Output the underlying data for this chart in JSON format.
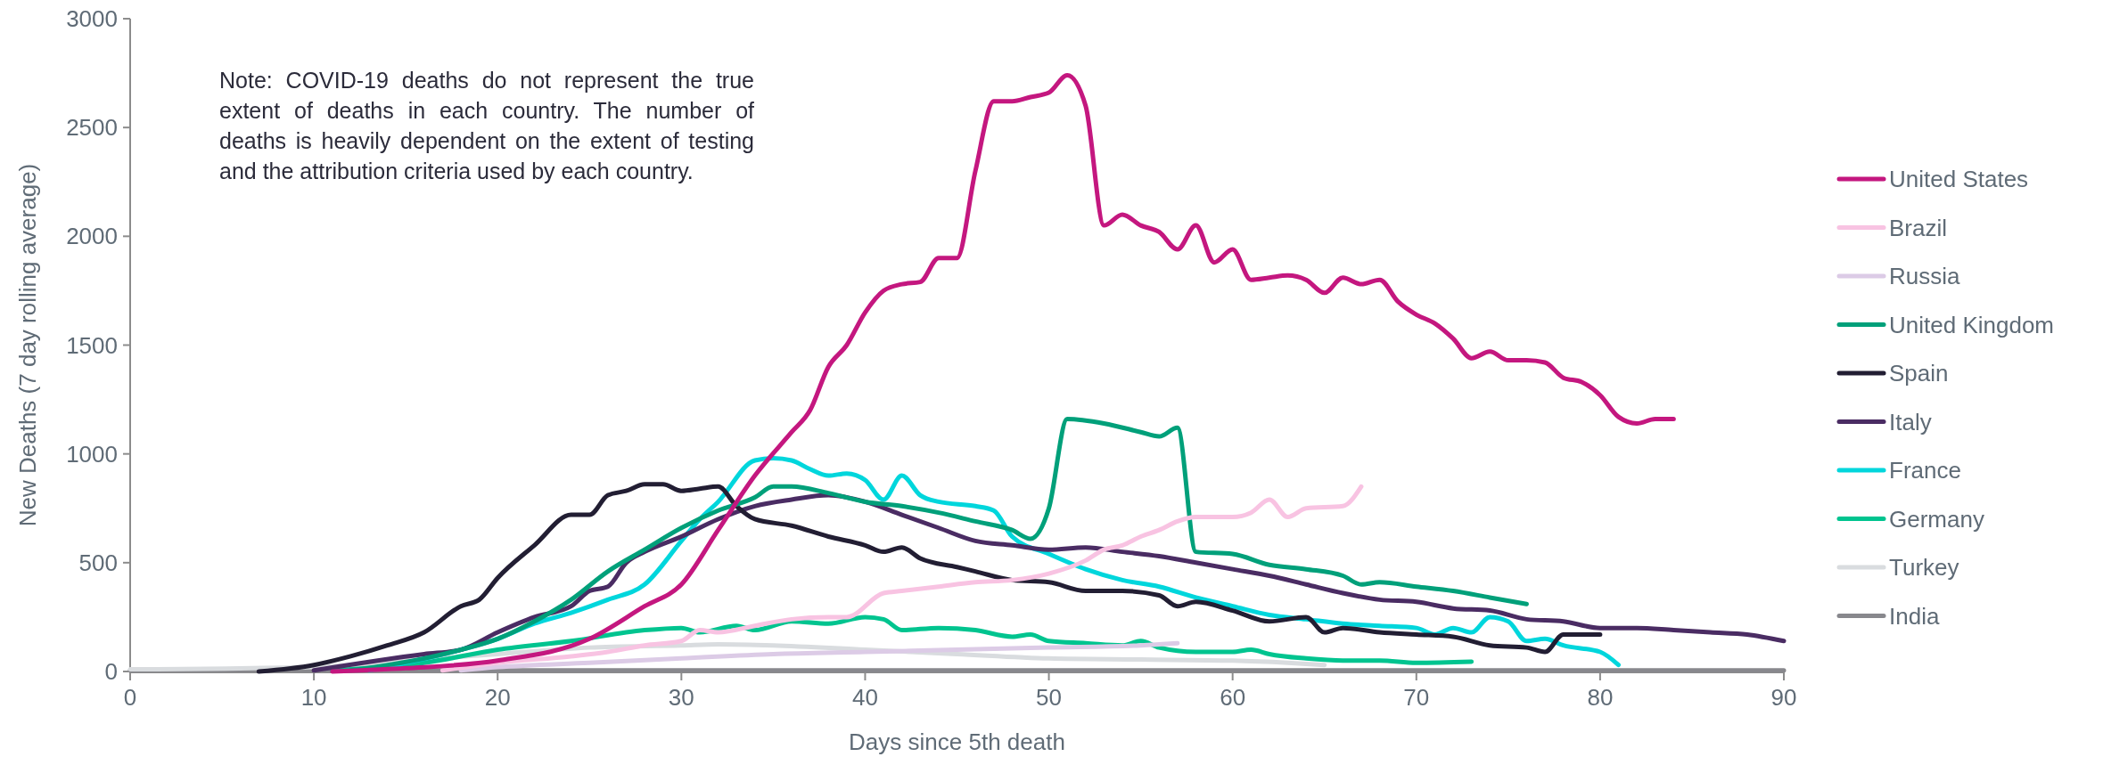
{
  "chart_data": {
    "type": "line",
    "xlabel": "Days since 5th death",
    "ylabel": "New Deaths (7 day rolling average)",
    "xlim": [
      0,
      90
    ],
    "xticks": [
      0,
      10,
      20,
      30,
      40,
      50,
      60,
      70,
      80,
      90
    ],
    "ylim": [
      0,
      3000
    ],
    "yticks": [
      0,
      500,
      1000,
      1500,
      2000,
      2500,
      3000
    ],
    "grid": false,
    "legend": "right",
    "line_style": "solid",
    "marker": "none",
    "annotations": [
      "Note: COVID-19 deaths do not represent the true extent of deaths in each country. The number of deaths is heavily dependent on the extent of testing and the attribution criteria used by each country."
    ],
    "series": [
      {
        "name": "United States",
        "color": "#c4177f",
        "x": [
          11,
          15,
          20,
          25,
          28,
          30,
          32,
          34,
          36,
          37,
          38,
          39,
          40,
          41,
          42,
          43,
          44,
          45,
          46,
          47,
          48,
          49,
          50,
          51,
          52,
          53,
          54,
          55,
          56,
          57,
          58,
          59,
          60,
          61,
          62,
          63,
          64,
          65,
          66,
          67,
          68,
          69,
          70,
          71,
          72,
          73,
          74,
          75,
          76,
          77,
          78,
          79,
          80,
          81,
          82,
          83,
          84
        ],
        "values": [
          0,
          15,
          50,
          150,
          300,
          400,
          650,
          900,
          1100,
          1200,
          1400,
          1500,
          1650,
          1750,
          1780,
          1790,
          1900,
          1900,
          2300,
          2620,
          2620,
          2640,
          2660,
          2740,
          2600,
          2050,
          2100,
          2050,
          2020,
          1940,
          2050,
          1880,
          1940,
          1800,
          1810,
          1820,
          1800,
          1740,
          1810,
          1780,
          1800,
          1700,
          1640,
          1600,
          1530,
          1440,
          1470,
          1430,
          1430,
          1420,
          1350,
          1330,
          1270,
          1170,
          1140,
          1160,
          1160
        ]
      },
      {
        "name": "Brazil",
        "color": "#f8c3e2",
        "x": [
          17,
          20,
          24,
          26,
          28,
          30,
          31,
          32,
          34,
          36,
          38,
          39,
          41,
          42,
          44,
          46,
          48,
          50,
          52,
          53,
          54,
          55,
          56,
          57,
          58,
          60,
          61,
          62,
          63,
          64,
          66,
          67
        ],
        "values": [
          5,
          40,
          70,
          90,
          120,
          140,
          190,
          180,
          210,
          240,
          250,
          250,
          360,
          370,
          390,
          410,
          420,
          450,
          510,
          560,
          580,
          620,
          650,
          690,
          710,
          710,
          730,
          790,
          710,
          750,
          760,
          850
        ]
      },
      {
        "name": "Russia",
        "color": "#dccbe6",
        "x": [
          18,
          20,
          25,
          30,
          35,
          40,
          45,
          50,
          55,
          57
        ],
        "values": [
          5,
          20,
          40,
          60,
          80,
          90,
          100,
          110,
          120,
          130
        ]
      },
      {
        "name": "United Kingdom",
        "color": "#00a07a",
        "x": [
          12,
          16,
          18,
          20,
          22,
          24,
          26,
          28,
          30,
          32,
          34,
          35,
          36,
          38,
          40,
          42,
          44,
          46,
          48,
          49,
          50,
          51,
          53,
          55,
          56,
          57,
          58,
          60,
          62,
          64,
          66,
          67,
          68,
          70,
          72,
          74,
          76
        ],
        "values": [
          5,
          60,
          100,
          150,
          230,
          330,
          460,
          560,
          660,
          740,
          800,
          850,
          850,
          820,
          780,
          760,
          730,
          690,
          650,
          610,
          750,
          1160,
          1140,
          1100,
          1080,
          1120,
          550,
          540,
          490,
          470,
          440,
          400,
          410,
          390,
          370,
          340,
          310
        ]
      },
      {
        "name": "Spain",
        "color": "#221e33",
        "x": [
          7,
          10,
          12,
          14,
          16,
          18,
          19,
          20,
          22,
          24,
          25,
          26,
          27,
          28,
          29,
          30,
          31,
          32,
          33,
          34,
          36,
          38,
          40,
          41,
          42,
          43,
          45,
          46,
          48,
          50,
          52,
          54,
          56,
          57,
          58,
          60,
          62,
          64,
          65,
          66,
          68,
          70,
          72,
          74,
          76,
          77,
          78,
          80
        ],
        "values": [
          0,
          30,
          70,
          120,
          180,
          300,
          330,
          430,
          580,
          720,
          720,
          810,
          830,
          860,
          860,
          830,
          840,
          850,
          760,
          700,
          670,
          620,
          580,
          550,
          570,
          520,
          480,
          460,
          420,
          410,
          370,
          370,
          350,
          300,
          320,
          280,
          230,
          250,
          180,
          200,
          180,
          170,
          160,
          120,
          110,
          90,
          170,
          170
        ]
      },
      {
        "name": "Italy",
        "color": "#4a2c63",
        "x": [
          10,
          16,
          18,
          20,
          22,
          24,
          25,
          26,
          27,
          28,
          30,
          32,
          34,
          36,
          38,
          40,
          42,
          44,
          46,
          48,
          50,
          52,
          54,
          56,
          58,
          60,
          62,
          64,
          66,
          68,
          70,
          72,
          74,
          76,
          78,
          80,
          82,
          84,
          86,
          88,
          90
        ],
        "values": [
          5,
          80,
          100,
          180,
          250,
          300,
          370,
          390,
          500,
          550,
          620,
          700,
          760,
          790,
          810,
          780,
          720,
          660,
          600,
          580,
          560,
          570,
          550,
          530,
          500,
          470,
          440,
          400,
          360,
          330,
          320,
          290,
          280,
          240,
          230,
          200,
          200,
          190,
          180,
          170,
          140
        ]
      },
      {
        "name": "France",
        "color": "#00d6dc",
        "x": [
          13,
          18,
          20,
          22,
          24,
          26,
          28,
          30,
          31,
          32,
          34,
          35,
          36,
          37,
          38,
          39,
          40,
          41,
          42,
          43,
          44,
          46,
          47,
          48,
          50,
          52,
          54,
          56,
          58,
          60,
          62,
          64,
          66,
          68,
          70,
          71,
          72,
          73,
          74,
          75,
          76,
          77,
          78,
          80,
          81
        ],
        "values": [
          5,
          100,
          150,
          220,
          270,
          330,
          400,
          600,
          700,
          780,
          970,
          980,
          970,
          930,
          900,
          910,
          880,
          790,
          900,
          810,
          780,
          760,
          740,
          620,
          540,
          470,
          420,
          390,
          340,
          300,
          260,
          240,
          220,
          210,
          200,
          170,
          200,
          180,
          250,
          230,
          140,
          150,
          120,
          90,
          30
        ]
      },
      {
        "name": "Germany",
        "color": "#00c48f",
        "x": [
          11,
          16,
          20,
          24,
          28,
          30,
          31,
          33,
          34,
          36,
          38,
          40,
          41,
          42,
          44,
          46,
          48,
          49,
          50,
          52,
          54,
          55,
          56,
          58,
          60,
          61,
          62,
          64,
          66,
          68,
          70,
          73
        ],
        "values": [
          5,
          40,
          100,
          140,
          190,
          200,
          180,
          210,
          190,
          230,
          220,
          250,
          240,
          190,
          200,
          190,
          160,
          170,
          140,
          130,
          120,
          140,
          110,
          90,
          90,
          100,
          80,
          60,
          50,
          50,
          40,
          45
        ]
      },
      {
        "name": "Turkey",
        "color": "#d9dcdf",
        "x": [
          0,
          10,
          15,
          20,
          25,
          30,
          32,
          35,
          40,
          45,
          50,
          55,
          60,
          63,
          65
        ],
        "values": [
          10,
          20,
          50,
          80,
          110,
          120,
          125,
          120,
          100,
          80,
          60,
          55,
          50,
          40,
          30
        ]
      },
      {
        "name": "India",
        "color": "#88888d",
        "x": [
          0,
          20,
          40,
          60,
          90
        ],
        "values": [
          5,
          5,
          5,
          5,
          5
        ]
      }
    ]
  }
}
